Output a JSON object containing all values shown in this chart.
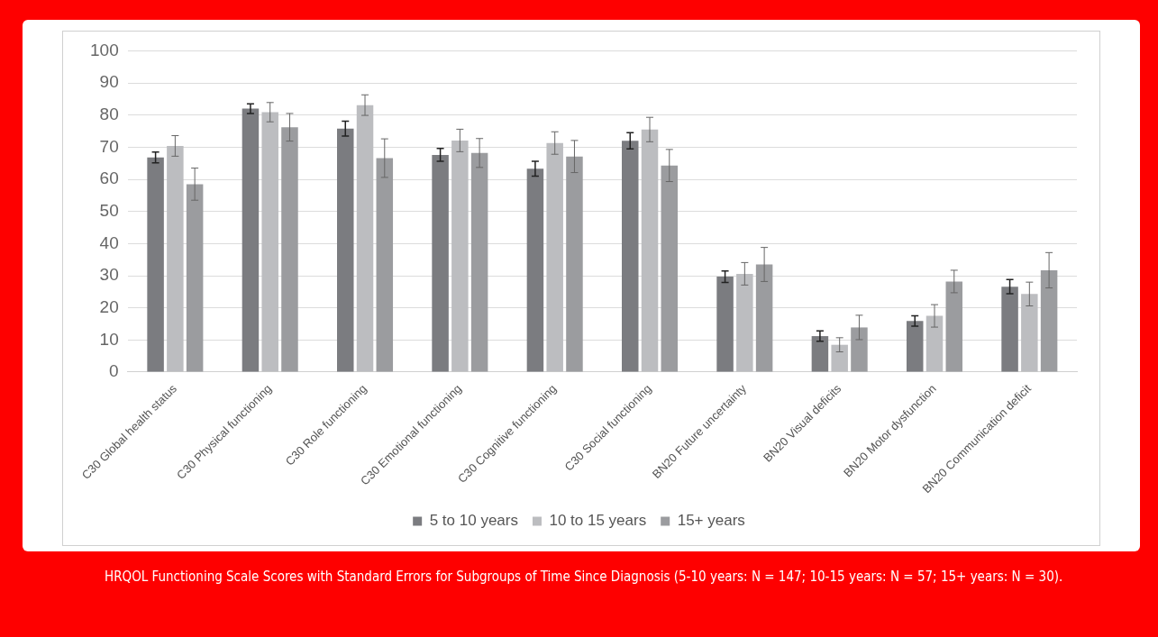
{
  "chart_data": {
    "type": "bar",
    "categories": [
      "C30 Global health status",
      "C30 Physical functioning",
      "C30 Role functioning",
      "C30 Emotional functioning",
      "C30 Cognitive functioning",
      "C30 Social functioning",
      "BN20 Future uncertainty",
      "BN20 Visual deficits",
      "BN20 Motor dysfunction",
      "BN20 Communication deficit"
    ],
    "series": [
      {
        "name": "5 to 10 years",
        "color": "#7b7c80",
        "values": [
          66.8,
          82,
          75.8,
          67.6,
          63.3,
          72,
          29.7,
          11.2,
          15.9,
          26.6
        ],
        "errors": [
          1.7,
          1.5,
          2.3,
          2,
          2.3,
          2.5,
          1.8,
          1.6,
          1.6,
          2.2
        ]
      },
      {
        "name": "10 to 15 years",
        "color": "#bcbdc0",
        "values": [
          70.4,
          80.9,
          83.1,
          72.1,
          71.3,
          75.5,
          30.6,
          8.5,
          17.5,
          24.3
        ],
        "errors": [
          3.2,
          3,
          3.2,
          3.5,
          3.5,
          3.8,
          3.5,
          2.2,
          3.5,
          3.7
        ]
      },
      {
        "name": "15+ years",
        "color": "#9b9c9f",
        "values": [
          58.5,
          76.2,
          66.6,
          68.2,
          67.1,
          64.3,
          33.5,
          13.9,
          28.2,
          31.7
        ],
        "errors": [
          5,
          4.3,
          6,
          4.5,
          5,
          5,
          5.3,
          3.8,
          3.5,
          5.5
        ]
      }
    ],
    "ylim": [
      0,
      100
    ],
    "yticks": [
      0,
      10,
      20,
      30,
      40,
      50,
      60,
      70,
      80,
      90,
      100
    ],
    "grid": "y",
    "legend": "bottom",
    "annotations": [
      "HRQOL Functioning Scale Scores with Standard Errors for Subgroups of Time Since Diagnosis (5-10 years: N = 147; 10-15 years: N = 57; 15+ years: N = 30)."
    ]
  }
}
